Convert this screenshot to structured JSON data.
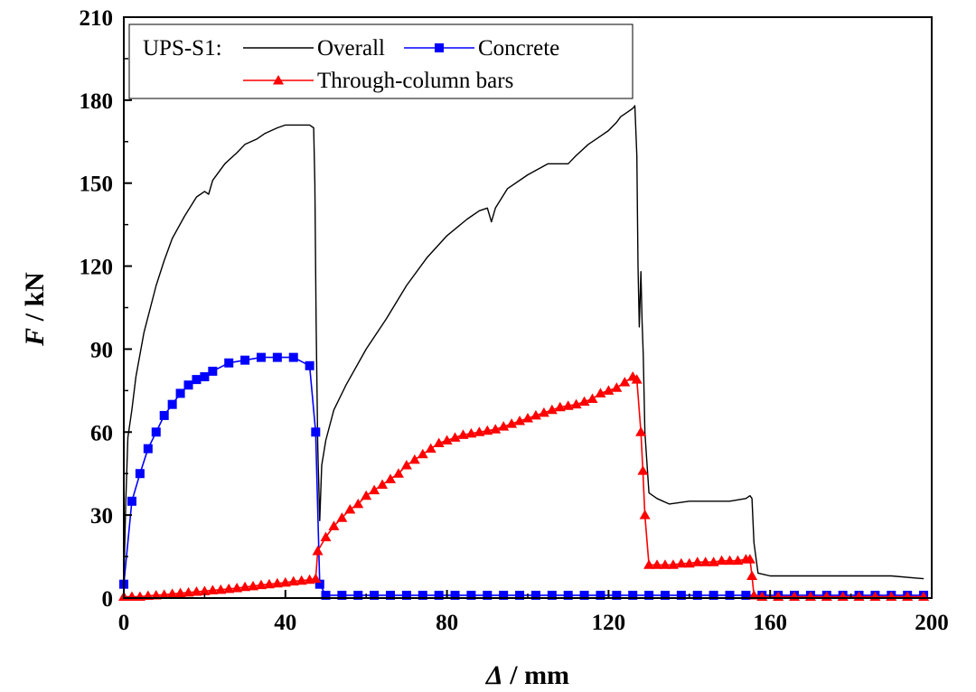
{
  "chart_data": {
    "type": "line",
    "xlabel": {
      "symbol": "Δ",
      "unit": " / mm"
    },
    "ylabel": {
      "symbol": "F",
      "unit": " / kN"
    },
    "xlim": [
      0,
      200
    ],
    "ylim": [
      0,
      210
    ],
    "xticks": [
      0,
      40,
      80,
      120,
      160,
      200
    ],
    "yticks": [
      0,
      30,
      60,
      90,
      120,
      150,
      180,
      210
    ],
    "grid": false,
    "legend": {
      "placement": "top-left",
      "prefix": "UPS-S1:",
      "entries": [
        "Overall",
        "Concrete",
        "Through-column bars"
      ]
    },
    "series": [
      {
        "name": "Overall",
        "color": "#000000",
        "marker": "none",
        "x": [
          0,
          0.5,
          1,
          2,
          3,
          5,
          8,
          10,
          12,
          15,
          18,
          20,
          21,
          22,
          25,
          28,
          30,
          33,
          35,
          38,
          40,
          42,
          44,
          46,
          47,
          47.3,
          47.6,
          48,
          48.5,
          49,
          50,
          52,
          55,
          60,
          65,
          70,
          75,
          80,
          85,
          88,
          90,
          91,
          92,
          95,
          100,
          105,
          108,
          110,
          112,
          115,
          118,
          120,
          122,
          123,
          124,
          125,
          126,
          126.5,
          127,
          127.3,
          127.6,
          128,
          128.3,
          128.6,
          129,
          130,
          132,
          135,
          140,
          145,
          150,
          154,
          155,
          155.5,
          156,
          157,
          160,
          170,
          180,
          190,
          198
        ],
        "y": [
          5,
          35,
          58,
          68,
          80,
          96,
          113,
          122,
          130,
          138,
          145,
          147,
          146,
          151,
          157,
          161,
          164,
          166,
          168,
          170,
          171,
          171,
          171,
          171,
          170,
          150,
          100,
          55,
          28,
          48,
          57,
          68,
          77,
          90,
          101,
          113,
          123,
          131,
          137,
          140,
          141,
          136,
          141,
          148,
          153,
          157,
          157,
          157,
          160,
          164,
          167,
          169,
          172,
          174,
          175,
          176,
          177,
          178,
          160,
          120,
          98,
          118,
          100,
          88,
          60,
          38,
          36,
          34,
          35,
          35,
          35,
          36,
          37,
          36,
          20,
          9,
          8,
          8,
          8,
          8,
          7
        ]
      },
      {
        "name": "Concrete",
        "color": "#0000ff",
        "marker": "square",
        "x": [
          0,
          2,
          4,
          6,
          8,
          10,
          12,
          14,
          16,
          18,
          20,
          22,
          26,
          30,
          34,
          38,
          42,
          46,
          47.5,
          48.5,
          50,
          54,
          58,
          62,
          66,
          70,
          74,
          78,
          82,
          86,
          90,
          94,
          98,
          102,
          106,
          110,
          114,
          118,
          122,
          126,
          130,
          134,
          138,
          142,
          146,
          150,
          154,
          158,
          162,
          166,
          170,
          174,
          178,
          182,
          186,
          190,
          194,
          198
        ],
        "y": [
          5,
          35,
          45,
          54,
          60,
          66,
          70,
          74,
          77,
          79,
          80,
          82,
          85,
          86,
          87,
          87,
          87,
          84,
          60,
          5,
          1,
          1,
          1,
          1,
          1,
          1,
          1,
          1,
          1,
          1,
          1,
          1,
          1,
          1,
          1,
          1,
          1,
          1,
          1,
          1,
          1,
          1,
          1,
          1,
          1,
          1,
          1,
          1,
          1,
          1,
          1,
          1,
          1,
          1,
          1,
          1,
          1,
          1
        ]
      },
      {
        "name": "Through-column bars",
        "color": "#ff0000",
        "marker": "triangle",
        "x": [
          0,
          2,
          4,
          6,
          8,
          10,
          12,
          14,
          16,
          18,
          20,
          22,
          24,
          26,
          28,
          30,
          32,
          34,
          36,
          38,
          40,
          42,
          44,
          46,
          47.5,
          48,
          50,
          52,
          54,
          56,
          58,
          60,
          62,
          64,
          66,
          68,
          70,
          72,
          74,
          76,
          78,
          80,
          82,
          84,
          86,
          88,
          90,
          92,
          94,
          96,
          98,
          100,
          102,
          104,
          106,
          108,
          110,
          112,
          114,
          116,
          118,
          120,
          122,
          124,
          126,
          127,
          128,
          128.5,
          129,
          130,
          132,
          134,
          136,
          138,
          140,
          142,
          144,
          146,
          148,
          150,
          152,
          154,
          155,
          155.5,
          156,
          158,
          162,
          166,
          170,
          174,
          178,
          182,
          186,
          190,
          194,
          198
        ],
        "y": [
          0.5,
          0.5,
          0.5,
          0.8,
          1,
          1.2,
          1.5,
          1.8,
          2,
          2.3,
          2.5,
          2.8,
          3,
          3.3,
          3.6,
          4,
          4.3,
          4.7,
          5,
          5.3,
          5.6,
          6,
          6.3,
          6.6,
          7,
          17,
          22,
          26,
          29,
          32,
          34,
          37,
          39,
          41,
          43,
          45,
          48,
          50,
          52,
          54,
          56,
          57,
          58,
          59,
          59.5,
          60,
          60.5,
          61,
          62,
          63,
          64,
          65,
          66,
          67,
          68,
          69,
          69.5,
          70,
          71,
          72,
          74,
          75,
          76,
          78,
          80,
          79,
          60,
          46,
          30,
          12,
          12,
          12,
          12,
          12.5,
          12.5,
          13,
          13,
          13,
          13.5,
          13.5,
          13.5,
          14,
          14,
          8,
          1,
          0.5,
          0.5,
          0.5,
          0.5,
          0.5,
          0.5,
          0.5,
          0.5,
          0.5,
          0.5,
          0.5
        ]
      }
    ]
  }
}
